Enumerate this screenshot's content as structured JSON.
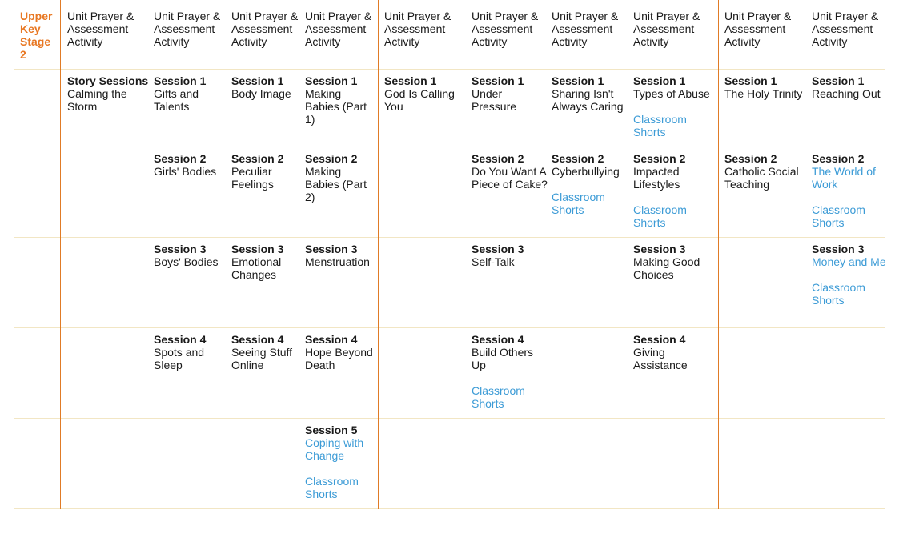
{
  "stage_label": [
    "Upper",
    "Key",
    "Stage",
    "2"
  ],
  "header": "Unit Prayer & Assessment Activity",
  "columns": [
    {
      "rows": [
        {
          "title": "Story Sessions",
          "name": "Calming the Storm"
        },
        null,
        null,
        null,
        null
      ]
    },
    {
      "rows": [
        {
          "title": "Session 1",
          "name": "Gifts and Talents"
        },
        {
          "title": "Session 2",
          "name": "Girls' Bodies"
        },
        {
          "title": "Session 3",
          "name": "Boys' Bodies"
        },
        {
          "title": "Session 4",
          "name": "Spots and Sleep"
        },
        null
      ]
    },
    {
      "rows": [
        {
          "title": "Session 1",
          "name": "Body Image"
        },
        {
          "title": "Session 2",
          "name": "Peculiar Feelings"
        },
        {
          "title": "Session 3",
          "name": "Emotional Changes"
        },
        {
          "title": "Session 4",
          "name": "Seeing Stuff Online"
        },
        null
      ]
    },
    {
      "rows": [
        {
          "title": "Session 1",
          "name": "Making Babies (Part 1)"
        },
        {
          "title": "Session 2",
          "name": "Making Babies (Part 2)"
        },
        {
          "title": "Session 3",
          "name": "Menstruation"
        },
        {
          "title": "Session 4",
          "name": "Hope Beyond Death"
        },
        {
          "title": "Session 5",
          "name": "Coping with Change",
          "name_link": true,
          "extra": "Classroom Shorts"
        }
      ]
    },
    {
      "rows": [
        {
          "title": "Session 1",
          "name": "God Is Calling You"
        },
        null,
        null,
        null,
        null
      ]
    },
    {
      "rows": [
        {
          "title": "Session 1",
          "name": "Under Pressure"
        },
        {
          "title": "Session 2",
          "name": "Do You Want A Piece of Cake?"
        },
        {
          "title": "Session 3",
          "name": "Self-Talk"
        },
        {
          "title": "Session 4",
          "name": "Build Others Up",
          "extra": "Classroom Shorts"
        },
        null
      ]
    },
    {
      "rows": [
        {
          "title": "Session 1",
          "name": "Sharing Isn't Always Caring"
        },
        {
          "title": "Session 2",
          "name": "Cyberbullying",
          "extra": "Classroom Shorts"
        },
        null,
        null,
        null
      ]
    },
    {
      "rows": [
        {
          "title": "Session 1",
          "name": "Types of Abuse",
          "extra": "Classroom Shorts"
        },
        {
          "title": "Session 2",
          "name": "Impacted Lifestyles",
          "extra": "Classroom Shorts"
        },
        {
          "title": "Session 3",
          "name": "Making Good Choices"
        },
        {
          "title": "Session 4",
          "name": "Giving Assistance"
        },
        null
      ]
    },
    {
      "rows": [
        {
          "title": "Session 1",
          "name": "The Holy Trinity"
        },
        {
          "title": "Session 2",
          "name": "Catholic Social Teaching"
        },
        null,
        null,
        null
      ]
    },
    {
      "rows": [
        {
          "title": "Session 1",
          "name": "Reaching Out"
        },
        {
          "title": "Session 2",
          "name": "The World of Work",
          "name_link": true,
          "extra": "Classroom Shorts"
        },
        {
          "title": "Session 3",
          "name": "Money and Me",
          "name_link": true,
          "extra": "Classroom Shorts"
        },
        null,
        null
      ]
    }
  ]
}
